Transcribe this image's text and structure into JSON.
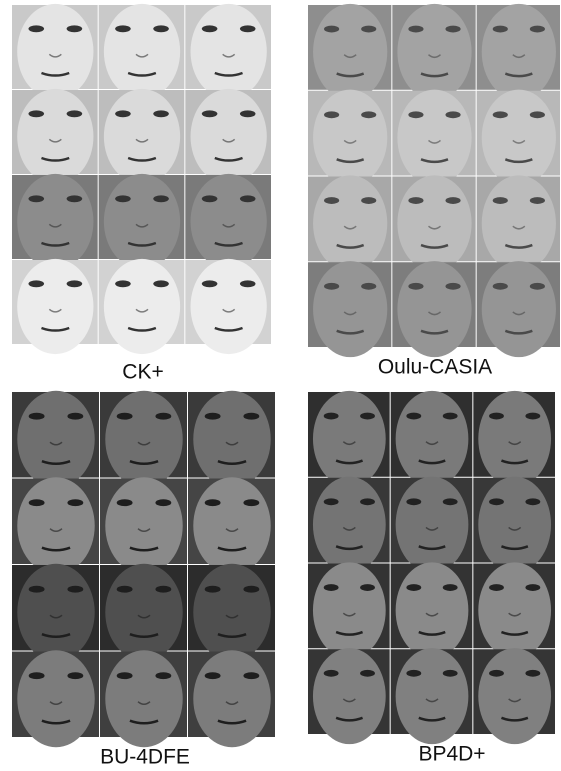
{
  "panels": [
    {
      "label": "CK+"
    },
    {
      "label": "Oulu-CASIA"
    },
    {
      "label": "BU-4DFE"
    },
    {
      "label": "BP4D+"
    }
  ]
}
